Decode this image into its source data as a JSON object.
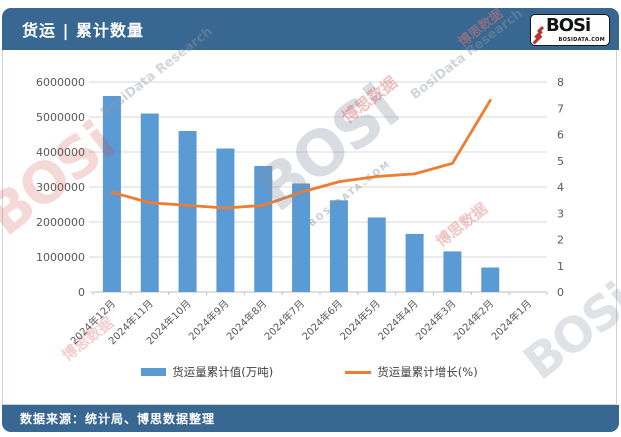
{
  "header": {
    "title": "货运 | 累计数量",
    "logo_text": "BOSi",
    "logo_domain": "BOSIDATA.COM"
  },
  "footer": {
    "source": "数据来源：统计局、博思数据整理"
  },
  "colors": {
    "header_bg": "#386892",
    "bar": "#5B9BD5",
    "line": "#ED7D31",
    "grid": "#D9D9D9",
    "axis_line": "#BFBFBF",
    "axis_text": "#595959"
  },
  "watermarks": [
    "BOSi",
    "BOSIDATA.COM",
    "博思数据",
    "BosiData Research",
    "BosiData Research",
    "BOSi",
    "BOSi",
    "博思数据",
    "博思数据",
    "博思数据"
  ],
  "chart_data": {
    "type": "bar",
    "combo": "bar+line",
    "title": "货运 | 累计数量",
    "categories": [
      "2024年12月",
      "2024年11月",
      "2024年10月",
      "2024年9月",
      "2024年8月",
      "2024年7月",
      "2024年6月",
      "2024年5月",
      "2024年4月",
      "2024年3月",
      "2024年2月",
      "2024年1月"
    ],
    "series": [
      {
        "name": "货运量累计值(万吨)",
        "type": "bar",
        "axis": "left",
        "color": "#5B9BD5",
        "values": [
          5600000,
          5100000,
          4600000,
          4100000,
          3600000,
          3100000,
          2620000,
          2130000,
          1660000,
          1160000,
          700000,
          null
        ]
      },
      {
        "name": "货运量累计增长(%)",
        "type": "line",
        "axis": "right",
        "color": "#ED7D31",
        "values": [
          3.8,
          3.4,
          3.3,
          3.2,
          3.3,
          3.8,
          4.2,
          4.4,
          4.5,
          4.9,
          7.3,
          null
        ]
      }
    ],
    "left_axis": {
      "min": 0,
      "max": 6000000,
      "step": 1000000
    },
    "right_axis": {
      "min": 0,
      "max": 8,
      "step": 1
    },
    "grid": true,
    "legend_position": "bottom",
    "x_label_rotation": -45
  }
}
